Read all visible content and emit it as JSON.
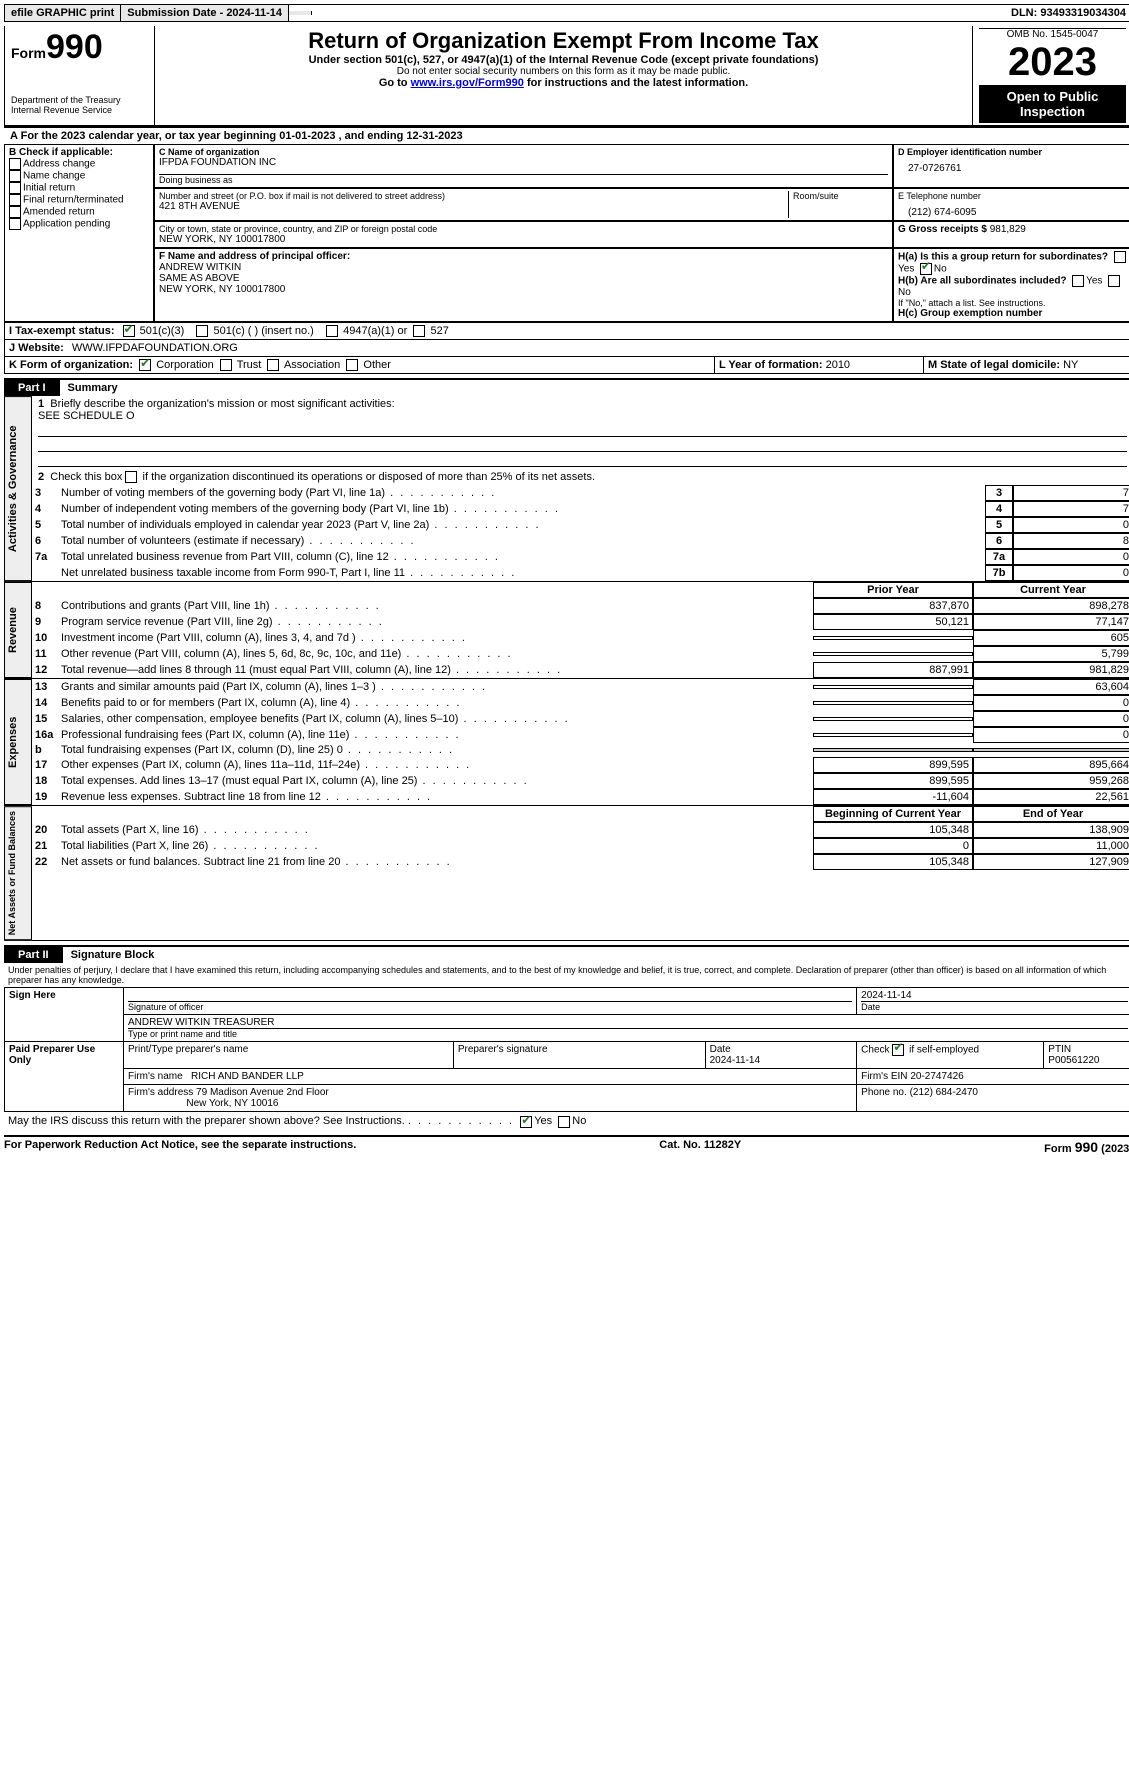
{
  "topbar": {
    "efile": "efile GRAPHIC print",
    "submission": "Submission Date - 2024-11-14",
    "dln": "DLN: 93493319034304"
  },
  "header": {
    "form_word": "Form",
    "form_num": "990",
    "title": "Return of Organization Exempt From Income Tax",
    "sub1": "Under section 501(c), 527, or 4947(a)(1) of the Internal Revenue Code (except private foundations)",
    "sub2": "Do not enter social security numbers on this form as it may be made public.",
    "sub3_pre": "Go to ",
    "sub3_link": "www.irs.gov/Form990",
    "sub3_post": " for instructions and the latest information.",
    "dept": "Department of the Treasury",
    "irs": "Internal Revenue Service",
    "omb": "OMB No. 1545-0047",
    "year": "2023",
    "inspect": "Open to Public Inspection"
  },
  "line_a": "For the 2023 calendar year, or tax year beginning 01-01-2023   , and ending 12-31-2023",
  "box_b": {
    "label": "B Check if applicable:",
    "opts": [
      "Address change",
      "Name change",
      "Initial return",
      "Final return/terminated",
      "Amended return",
      "Application pending"
    ]
  },
  "box_c": {
    "name_lbl": "C Name of organization",
    "name": "IFPDA FOUNDATION INC",
    "dba_lbl": "Doing business as",
    "dba": "",
    "street_lbl": "Number and street (or P.O. box if mail is not delivered to street address)",
    "street": "421 8TH AVENUE",
    "room_lbl": "Room/suite",
    "city_lbl": "City or town, state or province, country, and ZIP or foreign postal code",
    "city": "NEW YORK, NY  100017800"
  },
  "box_d": {
    "lbl": "D Employer identification number",
    "val": "27-0726761"
  },
  "box_e": {
    "lbl": "E Telephone number",
    "val": "(212) 674-6095"
  },
  "box_g": {
    "lbl": "G Gross receipts $",
    "val": "981,829"
  },
  "box_f": {
    "lbl": "F  Name and address of principal officer:",
    "name": "ANDREW WITKIN",
    "line2": "SAME AS ABOVE",
    "line3": "NEW YORK, NY  100017800"
  },
  "box_h": {
    "ha": "H(a)  Is this a group return for subordinates?",
    "hb": "H(b)  Are all subordinates included?",
    "hb_note": "If \"No,\" attach a list. See instructions.",
    "hc": "H(c)  Group exemption number"
  },
  "line_i": {
    "lbl": "I   Tax-exempt status:",
    "o1": "501(c)(3)",
    "o2": "501(c) (  ) (insert no.)",
    "o3": "4947(a)(1) or",
    "o4": "527"
  },
  "line_j": {
    "lbl": "J   Website:",
    "val": "WWW.IFPDAFOUNDATION.ORG"
  },
  "line_k": {
    "lbl": "K Form of organization:",
    "o1": "Corporation",
    "o2": "Trust",
    "o3": "Association",
    "o4": "Other"
  },
  "line_l": {
    "lbl": "L Year of formation:",
    "val": "2010"
  },
  "line_m": {
    "lbl": "M State of legal domicile:",
    "val": "NY"
  },
  "part1": {
    "tab": "Part I",
    "title": "Summary"
  },
  "gov": {
    "side": "Activities & Governance",
    "l1": "Briefly describe the organization's mission or most significant activities:",
    "l1v": "SEE SCHEDULE O",
    "l2": "Check this box          if the organization discontinued its operations or disposed of more than 25% of its net assets.",
    "lines": [
      {
        "n": "3",
        "t": "Number of voting members of the governing body (Part VI, line 1a)",
        "box": "3",
        "v": "7"
      },
      {
        "n": "4",
        "t": "Number of independent voting members of the governing body (Part VI, line 1b)",
        "box": "4",
        "v": "7"
      },
      {
        "n": "5",
        "t": "Total number of individuals employed in calendar year 2023 (Part V, line 2a)",
        "box": "5",
        "v": "0"
      },
      {
        "n": "6",
        "t": "Total number of volunteers (estimate if necessary)",
        "box": "6",
        "v": "8"
      },
      {
        "n": "7a",
        "t": "Total unrelated business revenue from Part VIII, column (C), line 12",
        "box": "7a",
        "v": "0"
      },
      {
        "n": "",
        "t": "Net unrelated business taxable income from Form 990-T, Part I, line 11",
        "box": "7b",
        "v": "0"
      }
    ]
  },
  "rev": {
    "side": "Revenue",
    "h_prior": "Prior Year",
    "h_curr": "Current Year",
    "rows": [
      {
        "n": "8",
        "t": "Contributions and grants (Part VIII, line 1h)",
        "p": "837,870",
        "c": "898,278"
      },
      {
        "n": "9",
        "t": "Program service revenue (Part VIII, line 2g)",
        "p": "50,121",
        "c": "77,147"
      },
      {
        "n": "10",
        "t": "Investment income (Part VIII, column (A), lines 3, 4, and 7d )",
        "p": "",
        "c": "605"
      },
      {
        "n": "11",
        "t": "Other revenue (Part VIII, column (A), lines 5, 6d, 8c, 9c, 10c, and 11e)",
        "p": "",
        "c": "5,799"
      },
      {
        "n": "12",
        "t": "Total revenue—add lines 8 through 11 (must equal Part VIII, column (A), line 12)",
        "p": "887,991",
        "c": "981,829"
      }
    ]
  },
  "exp": {
    "side": "Expenses",
    "rows": [
      {
        "n": "13",
        "t": "Grants and similar amounts paid (Part IX, column (A), lines 1–3 )",
        "p": "",
        "c": "63,604"
      },
      {
        "n": "14",
        "t": "Benefits paid to or for members (Part IX, column (A), line 4)",
        "p": "",
        "c": "0"
      },
      {
        "n": "15",
        "t": "Salaries, other compensation, employee benefits (Part IX, column (A), lines 5–10)",
        "p": "",
        "c": "0"
      },
      {
        "n": "16a",
        "t": "Professional fundraising fees (Part IX, column (A), line 11e)",
        "p": "",
        "c": "0"
      },
      {
        "n": "b",
        "t": "Total fundraising expenses (Part IX, column (D), line 25) 0",
        "p": "grey",
        "c": "grey"
      },
      {
        "n": "17",
        "t": "Other expenses (Part IX, column (A), lines 11a–11d, 11f–24e)",
        "p": "899,595",
        "c": "895,664"
      },
      {
        "n": "18",
        "t": "Total expenses. Add lines 13–17 (must equal Part IX, column (A), line 25)",
        "p": "899,595",
        "c": "959,268"
      },
      {
        "n": "19",
        "t": "Revenue less expenses. Subtract line 18 from line 12",
        "p": "-11,604",
        "c": "22,561"
      }
    ]
  },
  "net": {
    "side": "Net Assets or Fund Balances",
    "h_begin": "Beginning of Current Year",
    "h_end": "End of Year",
    "rows": [
      {
        "n": "20",
        "t": "Total assets (Part X, line 16)",
        "p": "105,348",
        "c": "138,909"
      },
      {
        "n": "21",
        "t": "Total liabilities (Part X, line 26)",
        "p": "0",
        "c": "11,000"
      },
      {
        "n": "22",
        "t": "Net assets or fund balances. Subtract line 21 from line 20",
        "p": "105,348",
        "c": "127,909"
      }
    ]
  },
  "part2": {
    "tab": "Part II",
    "title": "Signature Block",
    "perjury": "Under penalties of perjury, I declare that I have examined this return, including accompanying schedules and statements, and to the best of my knowledge and belief, it is true, correct, and complete. Declaration of preparer (other than officer) is based on all information of which preparer has any knowledge."
  },
  "sign": {
    "left": "Sign Here",
    "date": "2024-11-14",
    "sig_lbl": "Signature of officer",
    "date_lbl": "Date",
    "name": "ANDREW WITKIN  TREASURER",
    "name_lbl": "Type or print name and title"
  },
  "paid": {
    "left": "Paid Preparer Use Only",
    "c1": "Print/Type preparer's name",
    "c2": "Preparer's signature",
    "c3": "Date",
    "c3v": "2024-11-14",
    "c4a": "Check",
    "c4b": "if self-employed",
    "c5": "PTIN",
    "c5v": "P00561220",
    "firm_lbl": "Firm's name",
    "firm": "RICH AND BANDER LLP",
    "ein_lbl": "Firm's EIN",
    "ein": "20-2747426",
    "addr_lbl": "Firm's address",
    "addr1": "79 Madison Avenue 2nd Floor",
    "addr2": "New York, NY  10016",
    "phone_lbl": "Phone no.",
    "phone": "(212) 684-2470"
  },
  "discuss": "May the IRS discuss this return with the preparer shown above? See Instructions.",
  "footer": {
    "l": "For Paperwork Reduction Act Notice, see the separate instructions.",
    "c": "Cat. No. 11282Y",
    "r": "Form 990 (2023)"
  },
  "yesno": {
    "yes": "Yes",
    "no": "No"
  }
}
